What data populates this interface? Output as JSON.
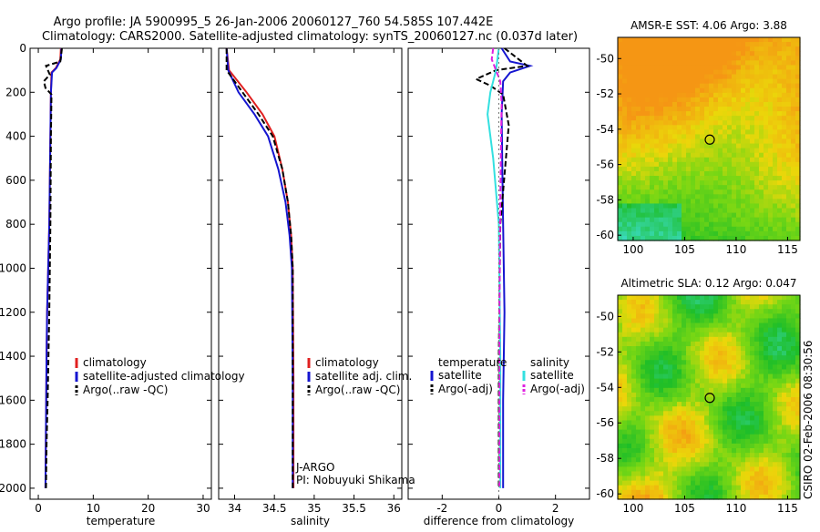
{
  "header": {
    "line1": "Argo profile: JA 5900995_5 26-Jan-2006 20060127_760 54.585S 107.442E",
    "line2": "Climatology: CARS2000. Satellite-adjusted climatology: synTS_20060127.nc (0.037d later)"
  },
  "colors": {
    "red": "#e02020",
    "blue": "#1515d0",
    "black": "#000000",
    "cyan": "#33e0e0",
    "magenta": "#e020e0"
  },
  "chart_data": [
    {
      "id": "temperature",
      "type": "line",
      "xlabel": "temperature",
      "ylabel": "",
      "xlim": [
        -1.5,
        31.5
      ],
      "ylim": [
        0,
        2050
      ],
      "y_inverted": true,
      "xticks": [
        0,
        10,
        20,
        30
      ],
      "xtick_labels": [
        "0",
        "10",
        "20",
        "30"
      ],
      "yticks": [
        0,
        200,
        400,
        600,
        800,
        1000,
        1200,
        1400,
        1600,
        1800,
        2000
      ],
      "ytick_labels": [
        "0",
        "200",
        "400",
        "600",
        "800",
        "1000",
        "1200",
        "1400",
        "1600",
        "1800",
        "2000"
      ],
      "series": [
        {
          "name": "climatology",
          "color": "red",
          "dash": false,
          "x": [
            4.1,
            4.0,
            3.2,
            2.4,
            2.3,
            2.2,
            2.1,
            2.0,
            1.8,
            1.6,
            1.5,
            1.4,
            1.3
          ],
          "y": [
            0,
            50,
            90,
            110,
            200,
            400,
            600,
            800,
            1000,
            1200,
            1400,
            1700,
            2000
          ]
        },
        {
          "name": "satellite-adjusted climatology",
          "color": "blue",
          "dash": false,
          "x": [
            4.2,
            4.1,
            3.3,
            2.5,
            2.3,
            2.2,
            2.1,
            2.0,
            1.8,
            1.6,
            1.5,
            1.4,
            1.3
          ],
          "y": [
            0,
            50,
            90,
            110,
            200,
            400,
            600,
            800,
            1000,
            1200,
            1400,
            1700,
            2000
          ]
        },
        {
          "name": "Argo(..raw -QC)",
          "color": "black",
          "dash": true,
          "x": [
            4.3,
            4.0,
            1.4,
            2.1,
            1.0,
            1.3,
            2.4,
            2.3,
            2.2,
            2.0,
            1.7,
            1.5,
            1.4
          ],
          "y": [
            0,
            60,
            80,
            120,
            150,
            180,
            210,
            400,
            800,
            1200,
            1600,
            1800,
            2000
          ]
        }
      ],
      "legend": {
        "items": [
          "climatology",
          "satellite-adjusted climatology",
          "Argo(..raw -QC)"
        ],
        "placement": "lower-right"
      }
    },
    {
      "id": "salinity",
      "type": "line",
      "xlabel": "salinity",
      "xlim": [
        33.8,
        36.1
      ],
      "ylim": [
        0,
        2050
      ],
      "y_inverted": true,
      "xticks": [
        34,
        34.5,
        35,
        35.5,
        36
      ],
      "xtick_labels": [
        "34",
        "34.5",
        "35",
        "35.5",
        "36"
      ],
      "series": [
        {
          "name": "climatology",
          "color": "red",
          "dash": false,
          "x": [
            33.9,
            33.93,
            34.15,
            34.35,
            34.5,
            34.6,
            34.67,
            34.71,
            34.73,
            34.74,
            34.74
          ],
          "y": [
            0,
            100,
            200,
            300,
            400,
            550,
            700,
            850,
            1000,
            1500,
            2000
          ]
        },
        {
          "name": "satellite adj. clim.",
          "color": "blue",
          "dash": false,
          "x": [
            33.9,
            33.92,
            34.05,
            34.25,
            34.42,
            34.55,
            34.64,
            34.69,
            34.72,
            34.73,
            34.73
          ],
          "y": [
            0,
            100,
            200,
            300,
            400,
            550,
            700,
            850,
            1000,
            1500,
            2000
          ]
        },
        {
          "name": "Argo(..raw -QC)",
          "color": "black",
          "dash": true,
          "x": [
            33.9,
            33.9,
            34.1,
            34.3,
            34.48,
            34.6,
            34.67,
            34.71,
            34.73,
            34.73
          ],
          "y": [
            0,
            100,
            200,
            300,
            400,
            550,
            700,
            850,
            1000,
            2000
          ]
        }
      ],
      "legend": {
        "items": [
          "climatology",
          "satellite adj. clim.",
          "Argo(..raw -QC)"
        ],
        "placement": "lower-right"
      },
      "annotation": [
        "J-ARGO",
        "PI: Nobuyuki Shikama"
      ]
    },
    {
      "id": "difference",
      "type": "line",
      "xlabel": "difference from climatology",
      "xlim": [
        -3.2,
        3.2
      ],
      "ylim": [
        0,
        2050
      ],
      "y_inverted": true,
      "xticks": [
        -2,
        0,
        2
      ],
      "xtick_labels": [
        "-2",
        "0",
        "2"
      ],
      "legend_temperature_title": "temperature",
      "legend_salinity_title": "salinity",
      "series": [
        {
          "name": "satellite (temperature)",
          "color": "blue",
          "dash": false,
          "x": [
            0.1,
            0.4,
            1.1,
            0.4,
            0.15,
            0.1,
            0.12,
            0.15,
            0.2,
            0.15,
            0.15
          ],
          "y": [
            0,
            60,
            80,
            110,
            150,
            300,
            500,
            800,
            1200,
            1600,
            2000
          ]
        },
        {
          "name": "Argo(-adj) (temperature)",
          "color": "black",
          "dash": true,
          "x": [
            0.2,
            1.0,
            -0.1,
            -0.8,
            -0.3,
            0.15,
            0.35,
            0.25,
            0.05,
            0.0,
            0.0
          ],
          "y": [
            0,
            80,
            100,
            140,
            170,
            210,
            350,
            500,
            800,
            1400,
            2000
          ]
        },
        {
          "name": "satellite (salinity)",
          "color": "cyan",
          "dash": false,
          "x": [
            0.0,
            -0.1,
            -0.3,
            -0.4,
            -0.2,
            0.0,
            0.05,
            0.05
          ],
          "y": [
            0,
            100,
            200,
            300,
            500,
            800,
            1400,
            2000
          ]
        },
        {
          "name": "Argo(-adj) (salinity)",
          "color": "magenta",
          "dash": true,
          "x": [
            -0.2,
            -0.25,
            0.05,
            0.1,
            0.08,
            0.05,
            0.02,
            0.02
          ],
          "y": [
            0,
            50,
            150,
            250,
            400,
            700,
            1200,
            2000
          ]
        }
      ],
      "legend": {
        "items": [
          "satellite",
          "Argo(-adj)",
          "satellite",
          "Argo(-adj)"
        ],
        "placement": "lower-center"
      }
    },
    {
      "id": "sst_map",
      "type": "heatmap",
      "title": "AMSR-E SST: 4.06 Argo: 3.88",
      "xlim": [
        98.5,
        116.2
      ],
      "ylim": [
        -60.3,
        -48.8
      ],
      "xticks": [
        100,
        105,
        110,
        115
      ],
      "xtick_labels": [
        "100",
        "105",
        "110",
        "115"
      ],
      "yticks": [
        -50,
        -52,
        -54,
        -56,
        -58,
        -60
      ],
      "ytick_labels": [
        "-50",
        "-52",
        "-54",
        "-56",
        "-58",
        "-60"
      ],
      "marker": {
        "lon": 107.44,
        "lat": -54.59
      }
    },
    {
      "id": "sla_map",
      "type": "heatmap",
      "title": "Altimetric SLA: 0.12 Argo: 0.047",
      "xlim": [
        98.5,
        116.2
      ],
      "ylim": [
        -60.3,
        -48.8
      ],
      "xticks": [
        100,
        105,
        110,
        115
      ],
      "xtick_labels": [
        "100",
        "105",
        "110",
        "115"
      ],
      "yticks": [
        -50,
        -52,
        -54,
        -56,
        -58,
        -60
      ],
      "ytick_labels": [
        "-50",
        "-52",
        "-54",
        "-56",
        "-58",
        "-60"
      ],
      "marker": {
        "lon": 107.44,
        "lat": -54.59
      }
    }
  ],
  "footer": {
    "stamp": "CSIRO 02-Feb-2006 08:30:56"
  }
}
